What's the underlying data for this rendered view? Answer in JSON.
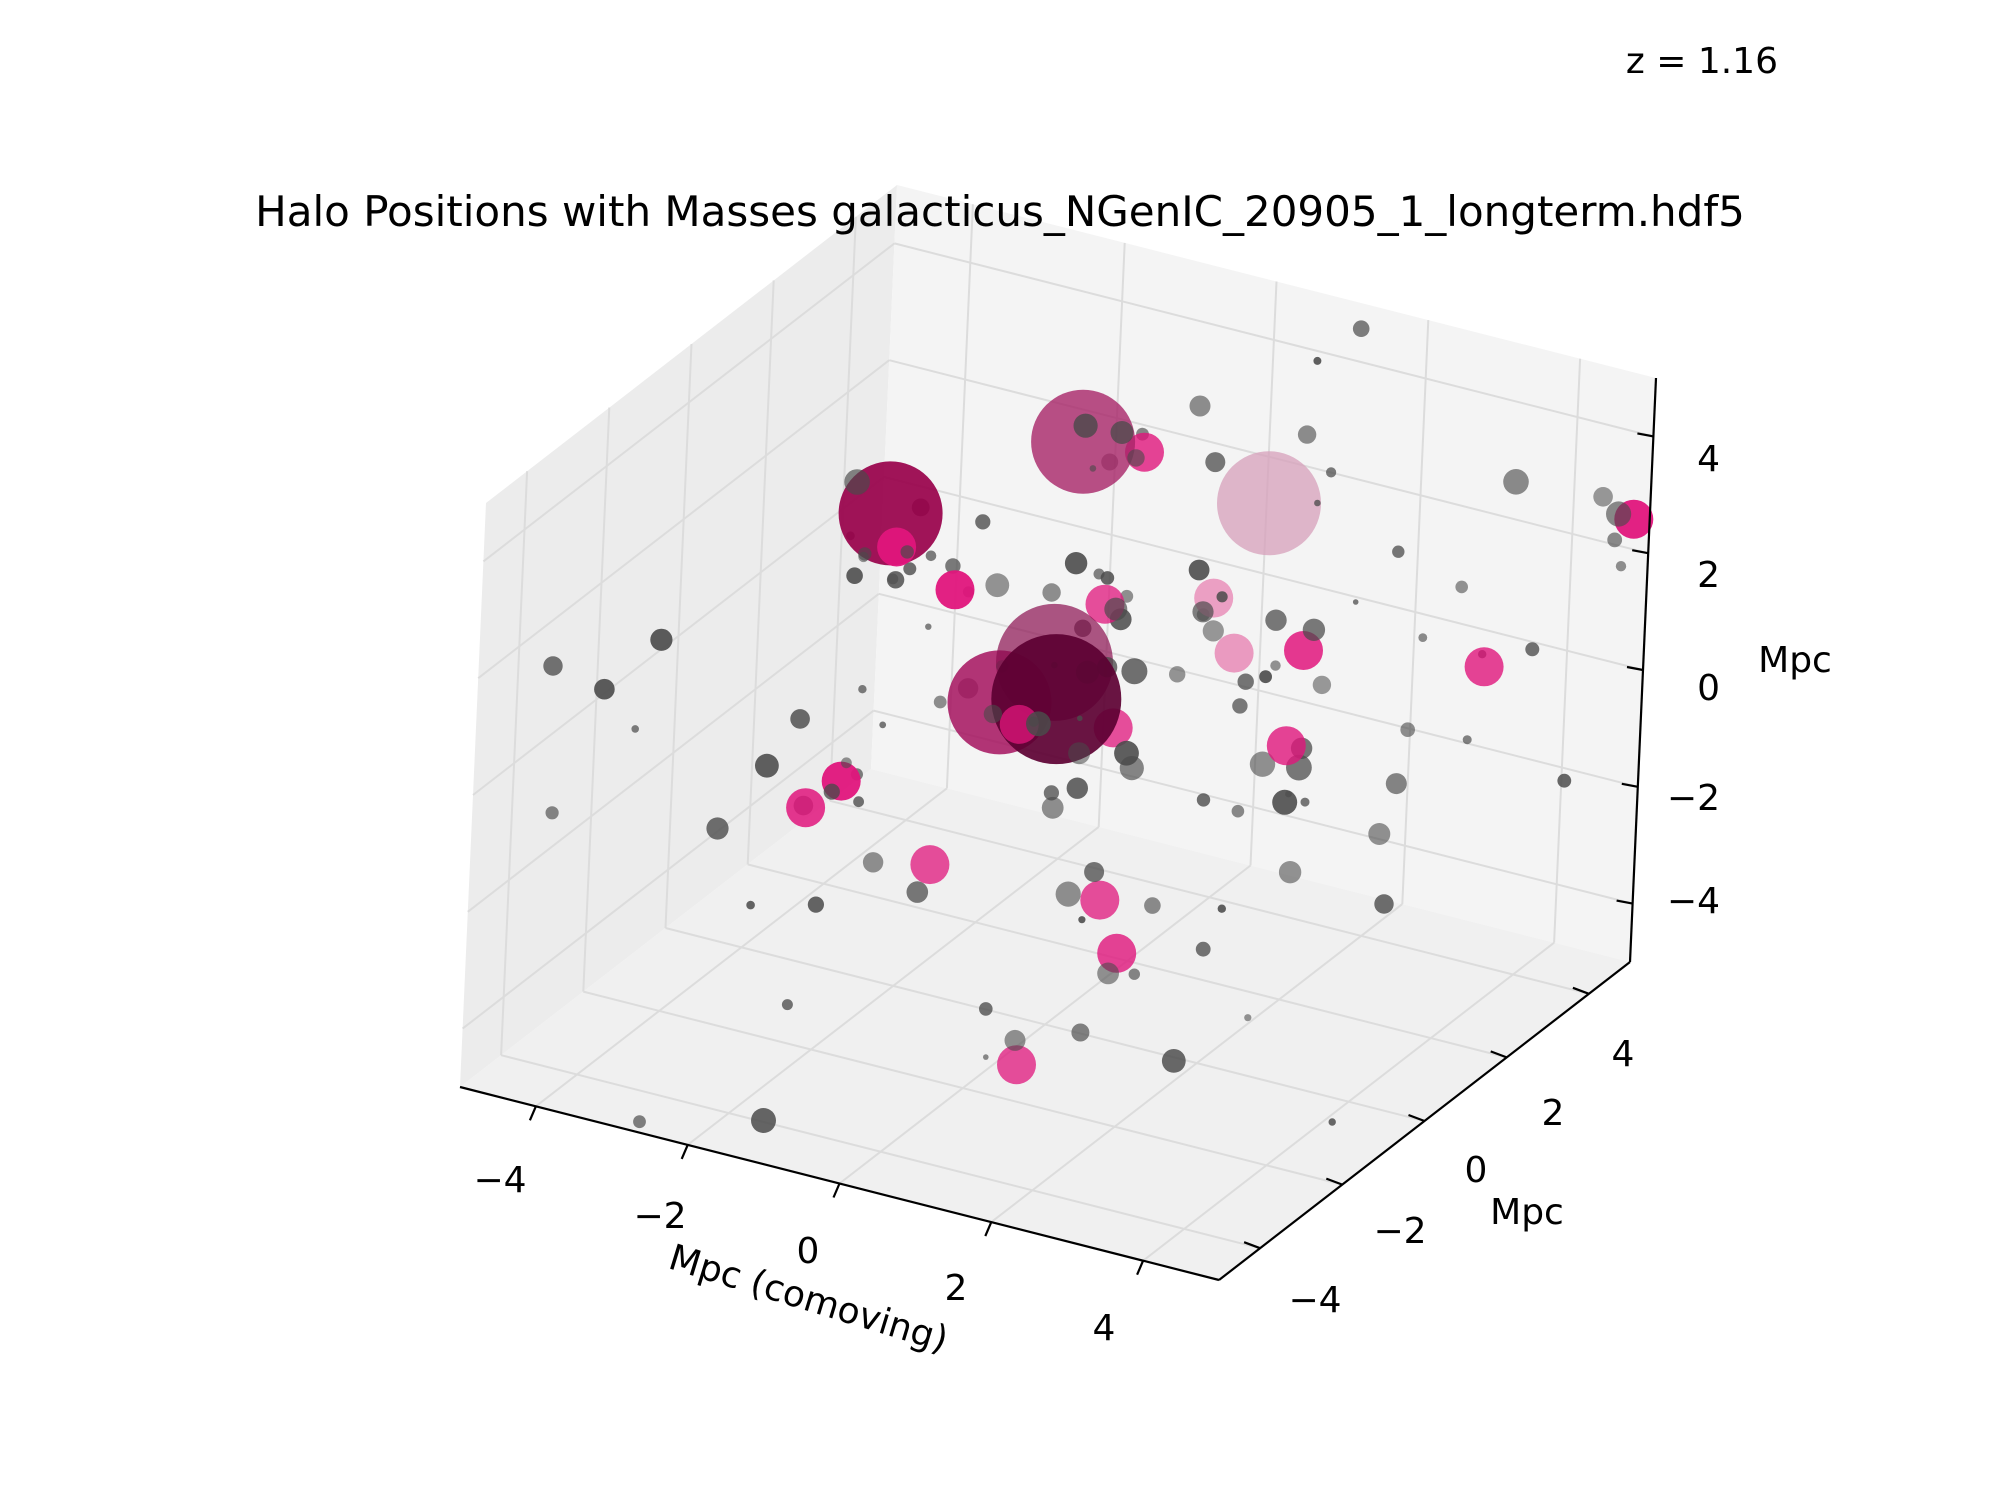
{
  "figure": {
    "title": "Halo Positions with Masses galacticus_NGenIC_20905_1_longterm.hdf5",
    "redshift_label": "z = 1.16"
  },
  "axes": {
    "x_label": "Mpc (comoving)",
    "y_label": "Mpc",
    "z_label": "Mpc",
    "x_ticks": [
      "−4",
      "−2",
      "0",
      "2",
      "4"
    ],
    "y_ticks": [
      "−4",
      "−2",
      "0",
      "2",
      "4"
    ],
    "z_ticks": [
      "−4",
      "−2",
      "0",
      "2",
      "4"
    ],
    "colors": {
      "pane_left": "#ececec",
      "pane_right": "#f4f4f4",
      "pane_floor": "#f0f0f0",
      "grid": "#dcdcdc",
      "axis": "#000000"
    }
  },
  "chart_data": {
    "type": "scatter",
    "projection": "3d",
    "title": "Halo Positions with Masses galacticus_NGenIC_20905_1_longterm.hdf5",
    "xlabel": "Mpc (comoving)",
    "ylabel": "Mpc",
    "zlabel": "Mpc",
    "xlim": [
      -5,
      5
    ],
    "ylim": [
      -5,
      5
    ],
    "zlim": [
      -5,
      5
    ],
    "grid": true,
    "annotation": "z = 1.16",
    "series": [
      {
        "role": "large halos",
        "points": [
          {
            "x": -0.3,
            "y": 0.5,
            "z": 0.2,
            "size": 5,
            "color": "#5c0032",
            "opacity": 0.92
          },
          {
            "x": -0.5,
            "y": 0.8,
            "z": 0.6,
            "size": 4.5,
            "color": "#8a1050",
            "opacity": 0.7
          },
          {
            "x": -3.6,
            "y": 2.5,
            "z": 1.2,
            "size": 4,
            "color": "#98004a",
            "opacity": 0.92
          },
          {
            "x": -1.4,
            "y": 1.2,
            "z": -0.6,
            "size": 4,
            "color": "#a4125e",
            "opacity": 0.85
          },
          {
            "x": -1.6,
            "y": 3.4,
            "z": 2.6,
            "size": 4,
            "color": "#a82468",
            "opacity": 0.8
          },
          {
            "x": 0.6,
            "y": 3.9,
            "z": 2.0,
            "size": 4,
            "color": "#d7a0bb",
            "opacity": 0.75
          }
        ]
      },
      {
        "role": "medium halos",
        "points": [
          {
            "x": -3.4,
            "y": 2.3,
            "z": 0.8,
            "size": 1.5,
            "color": "#e0157c",
            "opacity": 0.95
          },
          {
            "x": -2.2,
            "y": 1.5,
            "z": 0.9,
            "size": 1.5,
            "color": "#e0157c",
            "opacity": 0.95
          },
          {
            "x": -2.9,
            "y": 0.2,
            "z": -1.9,
            "size": 1.5,
            "color": "#e0157c",
            "opacity": 0.95
          },
          {
            "x": -1.0,
            "y": 3.8,
            "z": 2.4,
            "size": 1.5,
            "color": "#e0157c",
            "opacity": 0.8
          },
          {
            "x": -0.6,
            "y": 2.2,
            "z": 0.8,
            "size": 1.5,
            "color": "#e0157c",
            "opacity": 0.75
          },
          {
            "x": 0.4,
            "y": 3.0,
            "z": 0.8,
            "size": 1.5,
            "color": "#e889b6",
            "opacity": 0.8
          },
          {
            "x": 0.8,
            "y": 2.8,
            "z": 0.1,
            "size": 1.5,
            "color": "#e889b6",
            "opacity": 0.85
          },
          {
            "x": 1.6,
            "y": 3.0,
            "z": 0.3,
            "size": 1.5,
            "color": "#e0157c",
            "opacity": 0.85
          },
          {
            "x": 2.0,
            "y": 1.9,
            "z": -0.6,
            "size": 1.5,
            "color": "#e0157c",
            "opacity": 0.8
          },
          {
            "x": 0.2,
            "y": 1.0,
            "z": -0.4,
            "size": 1.5,
            "color": "#e0157c",
            "opacity": 0.75
          },
          {
            "x": 3.6,
            "y": 3.7,
            "z": 0.3,
            "size": 1.5,
            "color": "#e0157c",
            "opacity": 0.8
          },
          {
            "x": 5.0,
            "y": 4.6,
            "z": 2.8,
            "size": 1.5,
            "color": "#e0157c",
            "opacity": 0.95
          },
          {
            "x": 0.9,
            "y": -0.5,
            "z": -2.3,
            "size": 1.5,
            "color": "#e0157c",
            "opacity": 0.75
          },
          {
            "x": 1.1,
            "y": -0.4,
            "z": -3.2,
            "size": 1.5,
            "color": "#e0157c",
            "opacity": 0.8
          },
          {
            "x": -0.3,
            "y": -2.5,
            "z": -1.0,
            "size": 1.5,
            "color": "#e0157c",
            "opacity": 0.75
          },
          {
            "x": -1.9,
            "y": -2.6,
            "z": -0.5,
            "size": 1.5,
            "color": "#e0157c",
            "opacity": 0.85
          },
          {
            "x": 1.1,
            "y": -2.8,
            "z": -3.8,
            "size": 1.5,
            "color": "#e0157c",
            "opacity": 0.75
          },
          {
            "x": -0.2,
            "y": -0.6,
            "z": 0.4,
            "size": 1.5,
            "color": "#e0157c",
            "opacity": 0.75
          }
        ]
      },
      {
        "role": "small halos",
        "count_approx": 130,
        "color": "#4a4a4a",
        "size_range": [
          0.2,
          1
        ]
      }
    ]
  }
}
